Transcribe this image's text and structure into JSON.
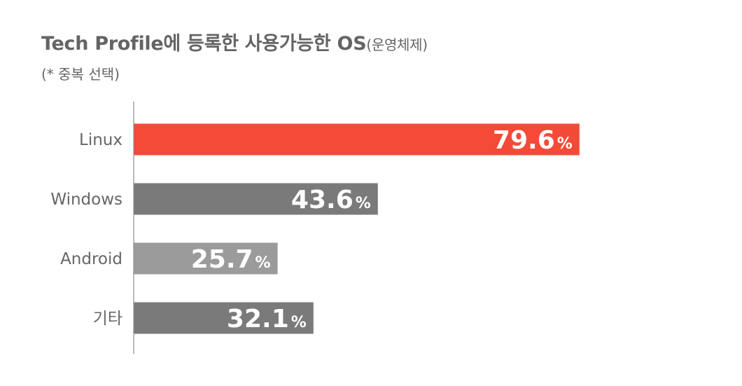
{
  "title": {
    "main": "Tech Profile에 등록한 사용가능한 OS",
    "suffix": "(운영체제)"
  },
  "subtitle": "(* 중복 선택)",
  "chart_data": {
    "type": "bar",
    "orientation": "horizontal",
    "categories": [
      "Linux",
      "Windows",
      "Android",
      "기타"
    ],
    "values": [
      79.6,
      43.6,
      25.7,
      32.1
    ],
    "value_unit": "%",
    "value_labels": [
      "79.6",
      "43.6",
      "25.7",
      "32.1"
    ],
    "bar_colors": [
      "#f44a37",
      "#7a7a7a",
      "#9b9b9b",
      "#7a7a7a"
    ],
    "xlim": [
      0,
      100
    ],
    "grid": false
  }
}
